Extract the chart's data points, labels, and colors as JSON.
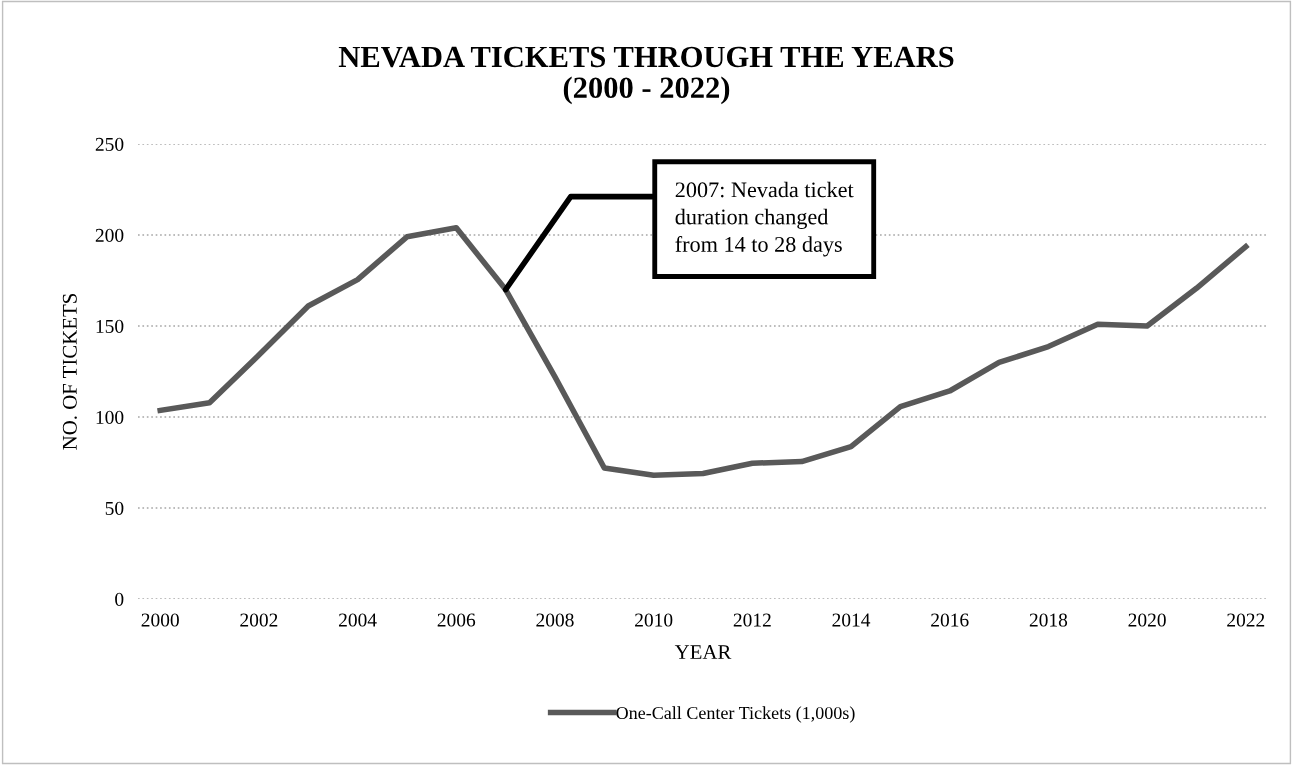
{
  "chart_data": {
    "type": "line",
    "title": "NEVADA TICKETS THROUGH THE YEARS\n(2000 - 2022)",
    "xlabel": "YEAR",
    "ylabel": "NO. OF TICKETS",
    "x": [
      2000,
      2001,
      2002,
      2003,
      2004,
      2005,
      2006,
      2007,
      2008,
      2009,
      2010,
      2011,
      2012,
      2013,
      2014,
      2015,
      2016,
      2017,
      2018,
      2019,
      2020,
      2021,
      2022
    ],
    "series": [
      {
        "name": "One-Call Center Tickets (1,000s)",
        "color": "#595959",
        "values": [
          103.6,
          107.8,
          134,
          161,
          175.5,
          199,
          204,
          170,
          122,
          72,
          68,
          69,
          74.6,
          75.5,
          83.7,
          105.7,
          114.3,
          130,
          138.7,
          151,
          150,
          170.7,
          193.6
        ]
      }
    ],
    "xlim": [
      1999.55,
      2022.45
    ],
    "xticks": [
      2000,
      2002,
      2004,
      2006,
      2008,
      2010,
      2012,
      2014,
      2016,
      2018,
      2020,
      2022
    ],
    "ylim": [
      0,
      250
    ],
    "yticks": [
      0,
      50,
      100,
      150,
      200,
      250
    ],
    "grid": "y",
    "legend": "bottom",
    "marker": "none",
    "line_style": "solid",
    "annotations": [
      {
        "text": "2007: Nevada ticket\nduration changed\nfrom 14 to 28 days",
        "x": 2007,
        "y": 170
      }
    ]
  }
}
